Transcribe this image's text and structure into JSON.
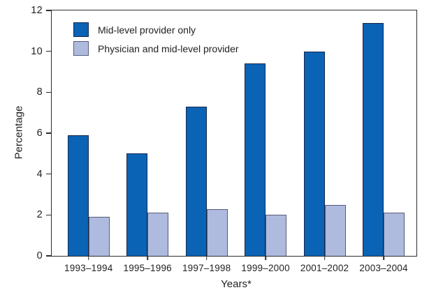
{
  "chart_data": {
    "type": "bar",
    "title": "",
    "categories": [
      "1993–1994",
      "1995–1996",
      "1997–1998",
      "1999–2000",
      "2001–2002",
      "2003–2004"
    ],
    "series": [
      {
        "name": "Mid-level provider only",
        "values": [
          5.9,
          5.0,
          7.3,
          9.4,
          10.0,
          11.4
        ],
        "color": "#0a63b5",
        "border_color": "#15284a"
      },
      {
        "name": "Physician and mid-level provider",
        "values": [
          1.9,
          2.1,
          2.3,
          2.0,
          2.5,
          2.1
        ],
        "color": "#aebade",
        "border_color": "#565c78"
      }
    ],
    "xlabel": "Years*",
    "ylabel": "Percentage",
    "ylim": [
      0,
      12
    ],
    "yticks": [
      0,
      2,
      4,
      6,
      8,
      10,
      12
    ],
    "legend_position": "top-left",
    "grid": false,
    "axis_color": "#2d2d2d",
    "text_color": "#1f1f1f",
    "background_color": "#ffffff"
  }
}
